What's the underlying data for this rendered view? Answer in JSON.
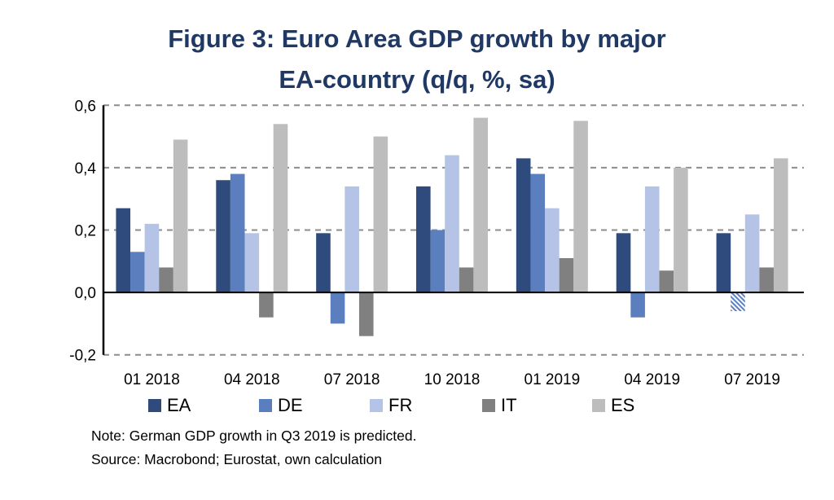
{
  "chart_data": {
    "type": "bar",
    "title_lines": [
      "Figure 3: Euro Area GDP growth by major",
      "EA-country  (q/q, %, sa)"
    ],
    "xlabel": "",
    "ylabel": "",
    "ylim": [
      -0.2,
      0.6
    ],
    "yticks": [
      0.6,
      0.4,
      0.2,
      0.0,
      -0.2
    ],
    "ytick_labels": [
      "0,6",
      "0,4",
      "0,2",
      "0,0",
      "-0,2"
    ],
    "grid": true,
    "categories": [
      "01 2018",
      "04 2018",
      "07 2018",
      "10 2018",
      "01 2019",
      "04 2019",
      "07 2019"
    ],
    "series": [
      {
        "name": "EA",
        "color": "#2f4a7c",
        "values": [
          0.27,
          0.36,
          0.19,
          0.34,
          0.43,
          0.19,
          0.19
        ]
      },
      {
        "name": "DE",
        "color": "#5b7fbe",
        "values": [
          0.13,
          0.38,
          -0.1,
          0.2,
          0.38,
          -0.08,
          -0.06
        ],
        "predicted_index": 6
      },
      {
        "name": "FR",
        "color": "#b4c3e6",
        "values": [
          0.22,
          0.19,
          0.34,
          0.44,
          0.27,
          0.34,
          0.25
        ]
      },
      {
        "name": "IT",
        "color": "#808080",
        "values": [
          0.08,
          -0.08,
          -0.14,
          0.08,
          0.11,
          0.07,
          0.08
        ]
      },
      {
        "name": "ES",
        "color": "#bdbdbd",
        "values": [
          0.49,
          0.54,
          0.5,
          0.56,
          0.55,
          0.4,
          0.43
        ]
      }
    ],
    "legend_position": "bottom",
    "notes": [
      "Note: German GDP growth in Q3 2019 is predicted.",
      "Source: Macrobond; Eurostat, own calculation"
    ]
  }
}
